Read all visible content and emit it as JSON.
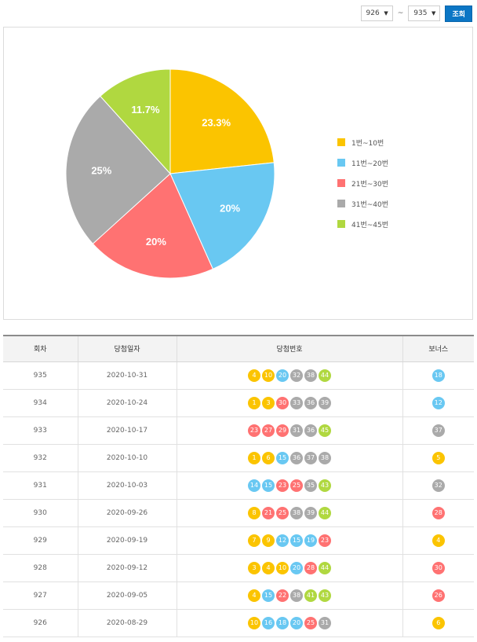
{
  "controls": {
    "from_round": "926",
    "to_round": "935",
    "separator": "~",
    "search_label": "조회"
  },
  "colors": {
    "range1": "#fbc400",
    "range2": "#69c8f2",
    "range3": "#ff7272",
    "range4": "#aaaaaa",
    "range5": "#b0d840",
    "accent": "#0b76c5"
  },
  "chart_data": {
    "type": "pie",
    "legend_position": "right",
    "slices": [
      {
        "label": "1번~10번",
        "value": 23.3,
        "display": "23.3%",
        "color": "#fbc400"
      },
      {
        "label": "11번~20번",
        "value": 20,
        "display": "20%",
        "color": "#69c8f2"
      },
      {
        "label": "21번~30번",
        "value": 20,
        "display": "20%",
        "color": "#ff7272"
      },
      {
        "label": "31번~40번",
        "value": 25,
        "display": "25%",
        "color": "#aaaaaa"
      },
      {
        "label": "41번~45번",
        "value": 11.7,
        "display": "11.7%",
        "color": "#b0d840"
      }
    ]
  },
  "table": {
    "headers": [
      "회차",
      "당첨일자",
      "당첨번호",
      "보너스"
    ],
    "rows": [
      {
        "round": "935",
        "date": "2020-10-31",
        "numbers": [
          4,
          10,
          20,
          32,
          38,
          44
        ],
        "bonus": 18
      },
      {
        "round": "934",
        "date": "2020-10-24",
        "numbers": [
          1,
          3,
          30,
          33,
          36,
          39
        ],
        "bonus": 12
      },
      {
        "round": "933",
        "date": "2020-10-17",
        "numbers": [
          23,
          27,
          29,
          31,
          36,
          45
        ],
        "bonus": 37
      },
      {
        "round": "932",
        "date": "2020-10-10",
        "numbers": [
          1,
          6,
          15,
          36,
          37,
          38
        ],
        "bonus": 5
      },
      {
        "round": "931",
        "date": "2020-10-03",
        "numbers": [
          14,
          15,
          23,
          25,
          35,
          43
        ],
        "bonus": 32
      },
      {
        "round": "930",
        "date": "2020-09-26",
        "numbers": [
          8,
          21,
          25,
          38,
          39,
          44
        ],
        "bonus": 28
      },
      {
        "round": "929",
        "date": "2020-09-19",
        "numbers": [
          7,
          9,
          12,
          15,
          19,
          23
        ],
        "bonus": 4
      },
      {
        "round": "928",
        "date": "2020-09-12",
        "numbers": [
          3,
          4,
          10,
          20,
          28,
          44
        ],
        "bonus": 30
      },
      {
        "round": "927",
        "date": "2020-09-05",
        "numbers": [
          4,
          15,
          22,
          38,
          41,
          43
        ],
        "bonus": 26
      },
      {
        "round": "926",
        "date": "2020-08-29",
        "numbers": [
          10,
          16,
          18,
          20,
          25,
          31
        ],
        "bonus": 6
      }
    ]
  }
}
